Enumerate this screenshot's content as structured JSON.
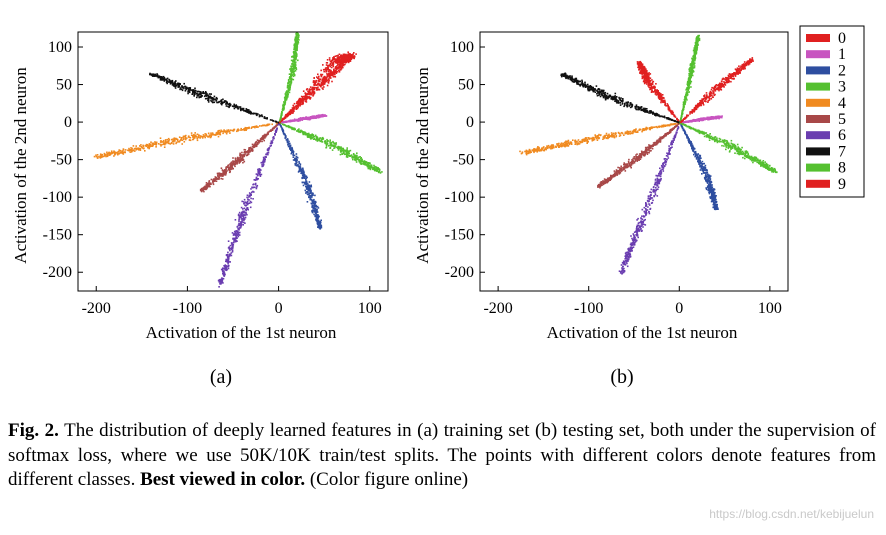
{
  "chart_data": [
    {
      "type": "scatter",
      "panel_label": "(a)",
      "xlabel": "Activation of the 1st neuron",
      "ylabel": "Activation of the 2nd neuron",
      "xlim": [
        -220,
        120
      ],
      "ylim": [
        -225,
        120
      ],
      "xticks": [
        -200,
        -100,
        0,
        100
      ],
      "yticks": [
        100,
        50,
        0,
        -50,
        -100,
        -150,
        -200
      ],
      "grid": false,
      "series": [
        {
          "name": "0",
          "color": "#e02020",
          "x": [
            0,
            60,
            80
          ],
          "y": [
            0,
            80,
            90
          ],
          "x_spread": [
            0,
            20,
            15
          ],
          "y_spread": [
            0,
            18,
            8
          ]
        },
        {
          "name": "1",
          "color": "#c855c0",
          "x": [
            0,
            25,
            50
          ],
          "y": [
            0,
            5,
            10
          ],
          "x_spread": [
            0,
            10,
            6
          ],
          "y_spread": [
            0,
            4,
            3
          ]
        },
        {
          "name": "2",
          "color": "#2e4ea0",
          "x": [
            0,
            30,
            45
          ],
          "y": [
            0,
            -80,
            -140
          ],
          "x_spread": [
            0,
            10,
            6
          ],
          "y_spread": [
            0,
            12,
            8
          ]
        },
        {
          "name": "3",
          "color": "#55c030",
          "x": [
            0,
            15,
            20
          ],
          "y": [
            0,
            70,
            120
          ],
          "x_spread": [
            0,
            8,
            4
          ],
          "y_spread": [
            0,
            12,
            6
          ]
        },
        {
          "name": "4",
          "color": "#f08a20",
          "x": [
            0,
            -100,
            -200
          ],
          "y": [
            0,
            -20,
            -45
          ],
          "x_spread": [
            0,
            30,
            10
          ],
          "y_spread": [
            0,
            12,
            6
          ]
        },
        {
          "name": "5",
          "color": "#a84848",
          "x": [
            0,
            -45,
            -85
          ],
          "y": [
            0,
            -50,
            -90
          ],
          "x_spread": [
            0,
            12,
            6
          ],
          "y_spread": [
            0,
            12,
            6
          ]
        },
        {
          "name": "6",
          "color": "#6a3db0",
          "x": [
            0,
            -40,
            -65
          ],
          "y": [
            0,
            -120,
            -215
          ],
          "x_spread": [
            0,
            12,
            6
          ],
          "y_spread": [
            0,
            15,
            8
          ]
        },
        {
          "name": "7",
          "color": "#111111",
          "x": [
            0,
            -80,
            -140
          ],
          "y": [
            0,
            35,
            65
          ],
          "x_spread": [
            0,
            20,
            8
          ],
          "y_spread": [
            0,
            10,
            4
          ]
        },
        {
          "name": "8",
          "color": "#55c030",
          "x": [
            0,
            60,
            110
          ],
          "y": [
            0,
            -30,
            -65
          ],
          "x_spread": [
            0,
            20,
            8
          ],
          "y_spread": [
            0,
            10,
            5
          ]
        },
        {
          "name": "9",
          "color": "#e02020",
          "x": [
            0,
            40,
            80
          ],
          "y": [
            0,
            45,
            90
          ],
          "x_spread": [
            0,
            15,
            6
          ],
          "y_spread": [
            0,
            12,
            6
          ]
        }
      ]
    },
    {
      "type": "scatter",
      "panel_label": "(b)",
      "xlabel": "Activation of the 1st neuron",
      "ylabel": "Activation of the 2nd neuron",
      "xlim": [
        -220,
        120
      ],
      "ylim": [
        -225,
        120
      ],
      "xticks": [
        -200,
        -100,
        0,
        100
      ],
      "yticks": [
        100,
        50,
        0,
        -50,
        -100,
        -150,
        -200
      ],
      "grid": false,
      "legend_position": "right",
      "series": [
        {
          "name": "0",
          "color": "#e02020",
          "x": [
            0,
            -35,
            -45
          ],
          "y": [
            0,
            55,
            80
          ],
          "x_spread": [
            0,
            12,
            8
          ],
          "y_spread": [
            0,
            15,
            8
          ]
        },
        {
          "name": "1",
          "color": "#c855c0",
          "x": [
            0,
            25,
            45
          ],
          "y": [
            0,
            5,
            8
          ],
          "x_spread": [
            0,
            8,
            5
          ],
          "y_spread": [
            0,
            4,
            3
          ]
        },
        {
          "name": "2",
          "color": "#2e4ea0",
          "x": [
            0,
            30,
            40
          ],
          "y": [
            0,
            -70,
            -115
          ],
          "x_spread": [
            0,
            10,
            6
          ],
          "y_spread": [
            0,
            12,
            6
          ]
        },
        {
          "name": "3",
          "color": "#55c030",
          "x": [
            0,
            12,
            20
          ],
          "y": [
            0,
            65,
            115
          ],
          "x_spread": [
            0,
            6,
            4
          ],
          "y_spread": [
            0,
            12,
            6
          ]
        },
        {
          "name": "4",
          "color": "#f08a20",
          "x": [
            0,
            -90,
            -175
          ],
          "y": [
            0,
            -20,
            -40
          ],
          "x_spread": [
            0,
            25,
            10
          ],
          "y_spread": [
            0,
            10,
            5
          ]
        },
        {
          "name": "5",
          "color": "#a84848",
          "x": [
            0,
            -45,
            -90
          ],
          "y": [
            0,
            -45,
            -85
          ],
          "x_spread": [
            0,
            12,
            6
          ],
          "y_spread": [
            0,
            10,
            5
          ]
        },
        {
          "name": "6",
          "color": "#6a3db0",
          "x": [
            0,
            -35,
            -65
          ],
          "y": [
            0,
            -110,
            -200
          ],
          "x_spread": [
            0,
            12,
            6
          ],
          "y_spread": [
            0,
            15,
            8
          ]
        },
        {
          "name": "7",
          "color": "#111111",
          "x": [
            0,
            -70,
            -130
          ],
          "y": [
            0,
            30,
            65
          ],
          "x_spread": [
            0,
            18,
            8
          ],
          "y_spread": [
            0,
            10,
            5
          ]
        },
        {
          "name": "8",
          "color": "#55c030",
          "x": [
            0,
            55,
            105
          ],
          "y": [
            0,
            -30,
            -65
          ],
          "x_spread": [
            0,
            18,
            8
          ],
          "y_spread": [
            0,
            10,
            5
          ]
        },
        {
          "name": "9",
          "color": "#e02020",
          "x": [
            0,
            40,
            80
          ],
          "y": [
            0,
            45,
            85
          ],
          "x_spread": [
            0,
            15,
            6
          ],
          "y_spread": [
            0,
            12,
            6
          ]
        }
      ]
    }
  ],
  "caption": {
    "fig_label": "Fig. 2.",
    "text": " The distribution of deeply learned features in (a) training set (b) testing set, both under the supervision of softmax loss, where we use 50K/10K train/test splits. The points with different colors denote features from different classes. ",
    "emphasis": "Best viewed in color.",
    "tail": " (Color figure online)"
  },
  "watermark": "https://blog.csdn.net/kebijuelun"
}
